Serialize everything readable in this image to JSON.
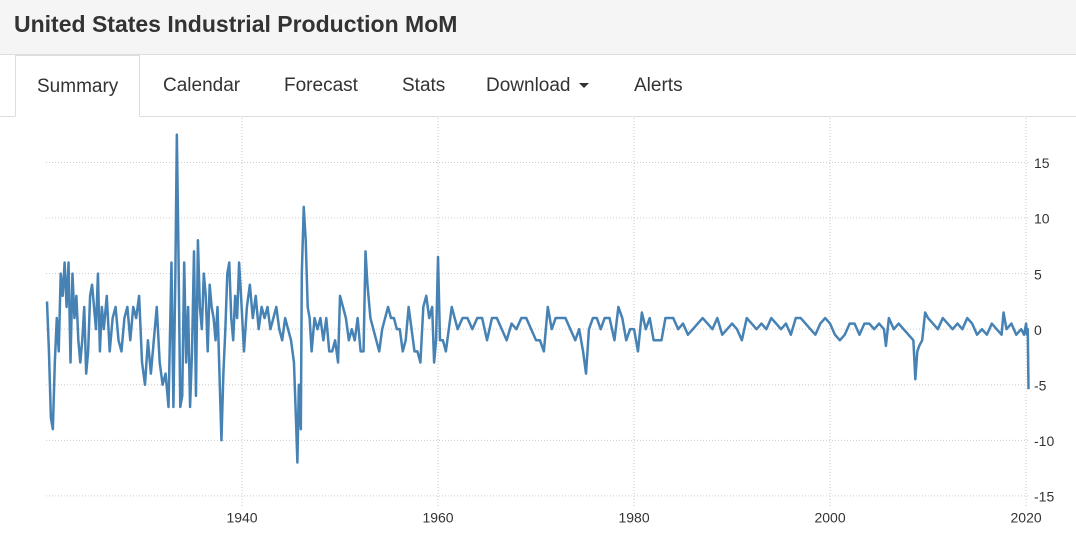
{
  "header": {
    "title": "United States Industrial Production MoM"
  },
  "tabs": [
    "Summary",
    "Calendar",
    "Forecast",
    "Stats",
    "Download",
    "Alerts"
  ],
  "chart_data": {
    "type": "line",
    "color": "#4682b4",
    "grid": true,
    "xlim": [
      1920,
      2020.4
    ],
    "ylim": [
      -16,
      19
    ],
    "xticks": [
      1940,
      1960,
      1980,
      2000,
      2020
    ],
    "yticks": [
      -15,
      -10,
      -5,
      0,
      5,
      10,
      15
    ],
    "x": [
      1920.1,
      1920.3,
      1920.5,
      1920.7,
      1920.9,
      1921.1,
      1921.3,
      1921.5,
      1921.7,
      1921.9,
      1922.1,
      1922.3,
      1922.5,
      1922.7,
      1922.9,
      1923.1,
      1923.3,
      1923.5,
      1923.7,
      1923.9,
      1924.1,
      1924.3,
      1924.5,
      1924.7,
      1924.9,
      1925.1,
      1925.3,
      1925.5,
      1925.7,
      1925.9,
      1926.2,
      1926.5,
      1926.8,
      1927.1,
      1927.4,
      1927.7,
      1928.0,
      1928.3,
      1928.6,
      1928.9,
      1929.2,
      1929.5,
      1929.8,
      1930.1,
      1930.4,
      1930.7,
      1931.0,
      1931.3,
      1931.6,
      1931.9,
      1932.2,
      1932.5,
      1932.8,
      1933.0,
      1933.2,
      1933.35,
      1933.5,
      1933.7,
      1933.9,
      1934.1,
      1934.3,
      1934.5,
      1934.7,
      1934.9,
      1935.1,
      1935.3,
      1935.5,
      1935.7,
      1935.9,
      1936.1,
      1936.3,
      1936.5,
      1936.7,
      1936.9,
      1937.1,
      1937.3,
      1937.5,
      1937.7,
      1937.9,
      1938.1,
      1938.3,
      1938.5,
      1938.7,
      1938.9,
      1939.1,
      1939.3,
      1939.5,
      1939.7,
      1939.9,
      1940.2,
      1940.5,
      1940.8,
      1941.1,
      1941.4,
      1941.7,
      1942.0,
      1942.3,
      1942.6,
      1942.9,
      1943.2,
      1943.5,
      1943.8,
      1944.1,
      1944.4,
      1944.7,
      1945.0,
      1945.3,
      1945.5,
      1945.65,
      1945.8,
      1946.0,
      1946.1,
      1946.3,
      1946.5,
      1946.7,
      1946.9,
      1947.1,
      1947.4,
      1947.7,
      1948.0,
      1948.3,
      1948.6,
      1948.9,
      1949.2,
      1949.5,
      1949.8,
      1950.0,
      1950.3,
      1950.6,
      1950.9,
      1951.2,
      1951.5,
      1951.8,
      1952.1,
      1952.4,
      1952.6,
      1952.8,
      1953.1,
      1953.4,
      1953.7,
      1954.0,
      1954.3,
      1954.6,
      1954.9,
      1955.2,
      1955.5,
      1955.8,
      1956.1,
      1956.4,
      1956.7,
      1957.0,
      1957.3,
      1957.6,
      1957.9,
      1958.2,
      1958.5,
      1958.8,
      1959.1,
      1959.4,
      1959.6,
      1959.8,
      1960.0,
      1960.2,
      1960.5,
      1960.8,
      1961.1,
      1961.4,
      1961.7,
      1962.0,
      1962.5,
      1963.0,
      1963.5,
      1964.0,
      1964.5,
      1965.0,
      1965.5,
      1966.0,
      1966.5,
      1967.0,
      1967.5,
      1968.0,
      1968.5,
      1969.0,
      1969.5,
      1970.0,
      1970.4,
      1970.8,
      1971.2,
      1971.6,
      1972.0,
      1972.5,
      1973.0,
      1973.5,
      1974.0,
      1974.4,
      1974.8,
      1975.1,
      1975.4,
      1975.8,
      1976.2,
      1976.6,
      1977.0,
      1977.5,
      1978.0,
      1978.4,
      1978.8,
      1979.2,
      1979.6,
      1980.0,
      1980.4,
      1980.8,
      1981.2,
      1981.6,
      1982.0,
      1982.4,
      1982.8,
      1983.2,
      1983.6,
      1984.0,
      1984.5,
      1985.0,
      1985.5,
      1986.0,
      1986.5,
      1987.0,
      1987.5,
      1988.0,
      1988.5,
      1989.0,
      1989.5,
      1990.0,
      1990.5,
      1991.0,
      1991.5,
      1992.0,
      1992.5,
      1993.0,
      1993.5,
      1994.0,
      1994.5,
      1995.0,
      1995.5,
      1996.0,
      1996.5,
      1997.0,
      1997.5,
      1998.0,
      1998.5,
      1999.0,
      1999.5,
      2000.0,
      2000.5,
      2001.0,
      2001.5,
      2002.0,
      2002.5,
      2003.0,
      2003.5,
      2004.0,
      2004.5,
      2005.0,
      2005.5,
      2005.7,
      2006.0,
      2006.5,
      2007.0,
      2007.5,
      2008.0,
      2008.5,
      2008.7,
      2008.9,
      2009.1,
      2009.4,
      2009.7,
      2010.0,
      2010.5,
      2011.0,
      2011.5,
      2012.0,
      2012.5,
      2013.0,
      2013.5,
      2014.0,
      2014.5,
      2015.0,
      2015.5,
      2016.0,
      2016.5,
      2017.0,
      2017.5,
      2017.7,
      2018.0,
      2018.5,
      2019.0,
      2019.5,
      2019.8,
      2020.0,
      2020.1,
      2020.17,
      2020.25
    ],
    "values": [
      2.5,
      -2,
      -8,
      -9,
      -3,
      1,
      -2,
      5,
      3,
      6,
      2,
      6,
      -3,
      5,
      1,
      3,
      -1,
      -3,
      -1,
      2,
      -4,
      -2,
      3,
      4,
      2,
      0,
      5,
      -2,
      2,
      0,
      3,
      -2,
      1,
      2,
      -1,
      -2,
      1,
      2,
      -1,
      2,
      1,
      3,
      -3,
      -5,
      -1,
      -4,
      -1,
      2,
      -3,
      -5,
      -4,
      -7,
      6,
      -7,
      5,
      17.5,
      8,
      -7,
      -6,
      6,
      -3,
      2,
      -7,
      -2,
      7,
      -6,
      8,
      2,
      0,
      5,
      3,
      -2,
      4,
      2,
      1,
      -1,
      2,
      -4,
      -10,
      -4,
      0,
      5,
      6,
      1,
      -1,
      3,
      1,
      6,
      3,
      -2,
      2,
      4,
      1,
      3,
      0,
      2,
      1,
      2,
      0,
      1,
      2,
      0,
      -1,
      1,
      0,
      -1,
      -3,
      -8,
      -12,
      -5,
      -9,
      5,
      11,
      8,
      2,
      1,
      -2,
      1,
      0,
      1,
      -1,
      1,
      -2,
      -2,
      -1,
      -3,
      3,
      2,
      1,
      -1,
      0,
      -1,
      1,
      -2,
      -2,
      7,
      4,
      1,
      0,
      -1,
      -2,
      0,
      1,
      2,
      1,
      1,
      0,
      0,
      -2,
      -1,
      2,
      0,
      -2,
      -2,
      -3,
      2,
      3,
      1,
      2,
      -3,
      -1,
      6.5,
      -1,
      -1,
      -2,
      0,
      2,
      1,
      0,
      1,
      1,
      0,
      1,
      1,
      -1,
      1,
      1,
      0,
      -1,
      0.5,
      0,
      1,
      1,
      0,
      -1,
      -1,
      -2,
      2,
      0,
      1,
      1,
      1,
      0,
      -1,
      0,
      -2,
      -4,
      0,
      1,
      1,
      0,
      1,
      1,
      -1,
      2,
      1,
      -1,
      0,
      0,
      -2,
      1.5,
      0,
      1,
      -1,
      -1,
      -1,
      1,
      1,
      1,
      0,
      0.5,
      -0.5,
      0,
      0.5,
      1,
      0.5,
      0,
      1,
      -0.5,
      0,
      0.5,
      0,
      -1,
      1,
      0.5,
      0,
      0.5,
      0,
      1,
      0.5,
      0,
      0.5,
      -0.5,
      1,
      1,
      0.5,
      0,
      -0.5,
      0.5,
      1,
      0.5,
      -0.5,
      -1,
      -0.5,
      0.5,
      0.5,
      -0.5,
      0.5,
      0.5,
      0,
      0.5,
      0,
      -1.5,
      1,
      0,
      0.5,
      0,
      -0.5,
      -1,
      -4.5,
      -2,
      -1.5,
      -1,
      1.5,
      1,
      0.5,
      0,
      1,
      0.5,
      0,
      0.5,
      0,
      1,
      0.5,
      -0.5,
      0,
      -0.5,
      0.5,
      0,
      -0.5,
      1.5,
      0,
      0.5,
      -0.5,
      0,
      -0.5,
      0.5,
      -0.5,
      0,
      -5.4
    ]
  }
}
